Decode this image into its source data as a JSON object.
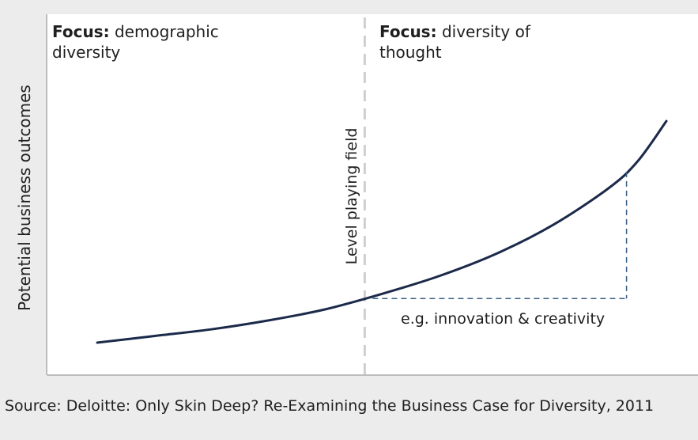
{
  "chart_data": {
    "type": "line",
    "title": "",
    "ylabel": "Potential business outcomes",
    "xlabel": "",
    "grid": false,
    "series": [
      {
        "name": "Potential business outcomes",
        "x": [
          0,
          0.1,
          0.2,
          0.3,
          0.4,
          0.5,
          0.6,
          0.7,
          0.8,
          0.9,
          0.95,
          1.0
        ],
        "y": [
          0.0,
          0.03,
          0.06,
          0.1,
          0.15,
          0.22,
          0.3,
          0.4,
          0.53,
          0.7,
          0.82,
          1.0
        ]
      }
    ],
    "xlim": [
      0,
      1
    ],
    "ylim": [
      0,
      1
    ],
    "divider": {
      "x": 0.47,
      "label": "Level playing field"
    },
    "annotation": {
      "text": "e.g. innovation & creativity",
      "from_x": 0.47,
      "to_x": 0.93
    },
    "regions": [
      {
        "focus_bold": "Focus:",
        "focus_text": "demographic diversity"
      },
      {
        "focus_bold": "Focus:",
        "focus_text": "diversity of thought"
      }
    ]
  },
  "source": "Source: Deloitte: Only Skin Deep? Re-Examining the Business Case for Diversity, 2011",
  "colors": {
    "curve": "#1b2a4a",
    "dashed_annotation": "#3a5f84",
    "divider": "#cfcfcf",
    "axis": "#bdbdbd",
    "panel": "#ffffff",
    "background": "#ececec"
  }
}
